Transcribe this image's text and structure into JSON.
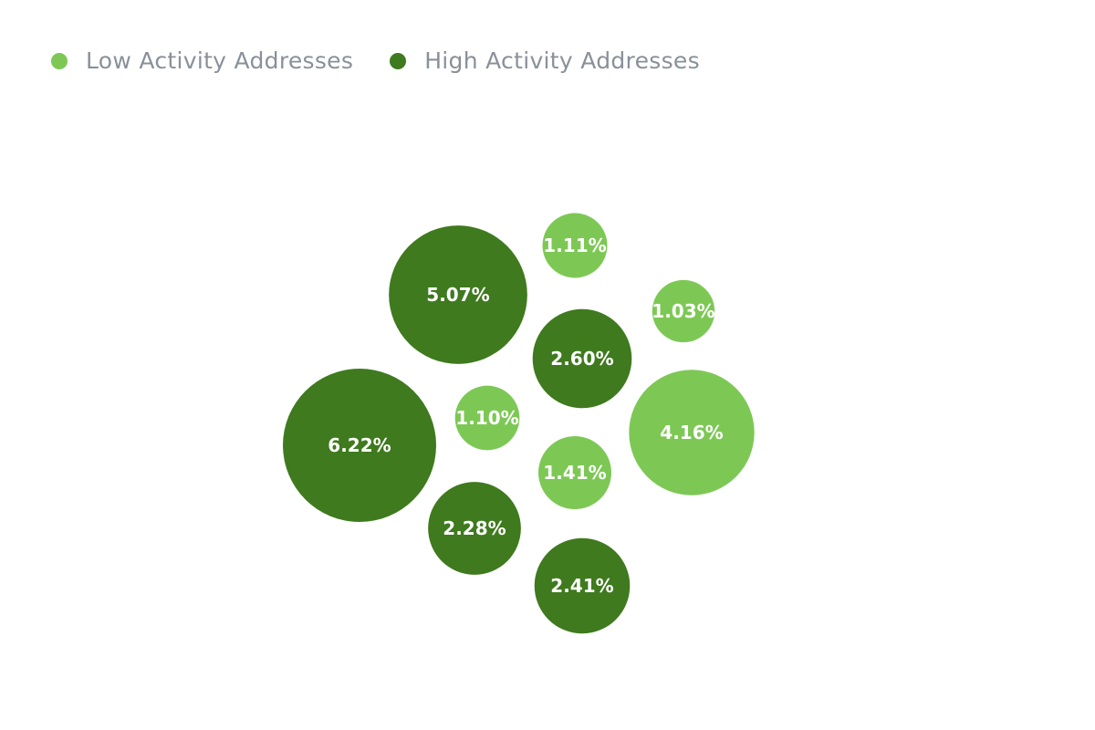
{
  "chart_data": {
    "type": "bubble",
    "series": [
      {
        "name": "Low Activity Addresses",
        "color": "#7dc855"
      },
      {
        "name": "High Activity Addresses",
        "color": "#3f7a1e"
      }
    ],
    "bubbles": [
      {
        "series": 1,
        "value": 6.22,
        "label": "6.22%"
      },
      {
        "series": 1,
        "value": 5.07,
        "label": "5.07%"
      },
      {
        "series": 0,
        "value": 4.16,
        "label": "4.16%"
      },
      {
        "series": 1,
        "value": 2.6,
        "label": "2.60%"
      },
      {
        "series": 1,
        "value": 2.41,
        "label": "2.41%"
      },
      {
        "series": 1,
        "value": 2.28,
        "label": "2.28%"
      },
      {
        "series": 0,
        "value": 1.41,
        "label": "1.41%"
      },
      {
        "series": 0,
        "value": 1.11,
        "label": "1.11%"
      },
      {
        "series": 0,
        "value": 1.1,
        "label": "1.10%"
      },
      {
        "series": 0,
        "value": 1.03,
        "label": "1.03%"
      }
    ],
    "legend_position": "top-left"
  }
}
